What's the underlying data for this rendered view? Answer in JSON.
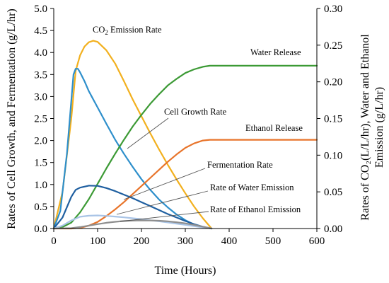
{
  "chart_data": {
    "type": "line",
    "xlabel": "Time (Hours)",
    "ylabel": "Rates of Cell Growth, and Fermentation (g/L/hr)",
    "y2label_line1": "Rates of CO₂(L/L/hr), Water and Ethanol",
    "y2label_line2": "Emission (g/L/hr)",
    "xlim": [
      0,
      600
    ],
    "ylim": [
      0,
      5.0
    ],
    "y2lim": [
      0,
      0.3
    ],
    "xticks": [
      "0",
      "100",
      "200",
      "300",
      "400",
      "500",
      "600"
    ],
    "yticks": [
      "0.0",
      "0.5",
      "1.0",
      "1.5",
      "2.0",
      "2.5",
      "3.0",
      "3.5",
      "4.0",
      "4.5",
      "5.0"
    ],
    "y2ticks": [
      "0.00",
      "0.05",
      "0.10",
      "0.15",
      "0.20",
      "0.25",
      "0.30"
    ],
    "grid": false,
    "series": [
      {
        "name": "CO₂ Emission Rate",
        "axis": "right",
        "color": "#F2B01E",
        "points": [
          [
            0,
            0
          ],
          [
            20,
            0.05
          ],
          [
            40,
            0.15
          ],
          [
            50,
            0.215
          ],
          [
            60,
            0.236
          ],
          [
            70,
            0.248
          ],
          [
            80,
            0.254
          ],
          [
            90,
            0.256
          ],
          [
            100,
            0.2545
          ],
          [
            120,
            0.243
          ],
          [
            140,
            0.225
          ],
          [
            160,
            0.201
          ],
          [
            180,
            0.176
          ],
          [
            200,
            0.153
          ],
          [
            220,
            0.13
          ],
          [
            240,
            0.108
          ],
          [
            260,
            0.087
          ],
          [
            280,
            0.067
          ],
          [
            300,
            0.048
          ],
          [
            320,
            0.03
          ],
          [
            340,
            0.014
          ],
          [
            360,
            0
          ]
        ]
      },
      {
        "name": "Cell Growth Rate",
        "axis": "left",
        "color": "#2E8FCB",
        "points": [
          [
            0,
            0
          ],
          [
            15,
            0.4
          ],
          [
            30,
            1.7
          ],
          [
            40,
            2.9
          ],
          [
            45,
            3.5
          ],
          [
            50,
            3.63
          ],
          [
            55,
            3.63
          ],
          [
            60,
            3.55
          ],
          [
            70,
            3.35
          ],
          [
            80,
            3.12
          ],
          [
            100,
            2.75
          ],
          [
            120,
            2.38
          ],
          [
            140,
            2.02
          ],
          [
            160,
            1.7
          ],
          [
            180,
            1.4
          ],
          [
            200,
            1.12
          ],
          [
            220,
            0.88
          ],
          [
            240,
            0.66
          ],
          [
            260,
            0.48
          ],
          [
            280,
            0.32
          ],
          [
            300,
            0.19
          ],
          [
            320,
            0.09
          ],
          [
            340,
            0.03
          ],
          [
            360,
            0
          ]
        ]
      },
      {
        "name": "Water Release",
        "axis": "right",
        "color": "#3C9A35",
        "points": [
          [
            0,
            0
          ],
          [
            20,
            0.002
          ],
          [
            40,
            0.008
          ],
          [
            60,
            0.022
          ],
          [
            80,
            0.04
          ],
          [
            100,
            0.061
          ],
          [
            120,
            0.082
          ],
          [
            140,
            0.102
          ],
          [
            160,
            0.121
          ],
          [
            180,
            0.139
          ],
          [
            200,
            0.155
          ],
          [
            220,
            0.17
          ],
          [
            240,
            0.183
          ],
          [
            260,
            0.195
          ],
          [
            280,
            0.204
          ],
          [
            300,
            0.212
          ],
          [
            320,
            0.217
          ],
          [
            340,
            0.2205
          ],
          [
            356,
            0.222
          ],
          [
            600,
            0.222
          ]
        ]
      },
      {
        "name": "Ethanol Release",
        "axis": "right",
        "color": "#E8742A",
        "points": [
          [
            0,
            0
          ],
          [
            40,
            0
          ],
          [
            60,
            0.001
          ],
          [
            80,
            0.004
          ],
          [
            100,
            0.009
          ],
          [
            120,
            0.017
          ],
          [
            140,
            0.026
          ],
          [
            160,
            0.036
          ],
          [
            180,
            0.047
          ],
          [
            200,
            0.058
          ],
          [
            220,
            0.069
          ],
          [
            240,
            0.08
          ],
          [
            260,
            0.091
          ],
          [
            280,
            0.101
          ],
          [
            300,
            0.11
          ],
          [
            320,
            0.116
          ],
          [
            340,
            0.12
          ],
          [
            356,
            0.121
          ],
          [
            600,
            0.121
          ]
        ]
      },
      {
        "name": "Fermentation Rate",
        "axis": "left",
        "color": "#1F5FA0",
        "points": [
          [
            0,
            0
          ],
          [
            20,
            0.25
          ],
          [
            40,
            0.72
          ],
          [
            50,
            0.88
          ],
          [
            60,
            0.93
          ],
          [
            80,
            0.975
          ],
          [
            100,
            0.97
          ],
          [
            120,
            0.92
          ],
          [
            140,
            0.85
          ],
          [
            160,
            0.77
          ],
          [
            180,
            0.69
          ],
          [
            200,
            0.6
          ],
          [
            220,
            0.51
          ],
          [
            240,
            0.42
          ],
          [
            260,
            0.33
          ],
          [
            280,
            0.25
          ],
          [
            300,
            0.17
          ],
          [
            320,
            0.1
          ],
          [
            340,
            0.04
          ],
          [
            360,
            0
          ]
        ]
      },
      {
        "name": "Rate of Water Emission",
        "axis": "right",
        "color": "#A9C4E6",
        "points": [
          [
            0,
            0
          ],
          [
            20,
            0.004
          ],
          [
            40,
            0.011
          ],
          [
            60,
            0.016
          ],
          [
            80,
            0.0175
          ],
          [
            100,
            0.0178
          ],
          [
            120,
            0.0172
          ],
          [
            140,
            0.0163
          ],
          [
            160,
            0.0152
          ],
          [
            180,
            0.014
          ],
          [
            200,
            0.0127
          ],
          [
            220,
            0.0113
          ],
          [
            240,
            0.0098
          ],
          [
            260,
            0.0083
          ],
          [
            280,
            0.0067
          ],
          [
            300,
            0.005
          ],
          [
            320,
            0.0033
          ],
          [
            340,
            0.0015
          ],
          [
            360,
            0
          ]
        ]
      },
      {
        "name": "Rate of Ethanol Emission",
        "axis": "right",
        "color": "#8E8E8E",
        "points": [
          [
            0,
            0
          ],
          [
            40,
            0.0005
          ],
          [
            60,
            0.002
          ],
          [
            80,
            0.004
          ],
          [
            100,
            0.006
          ],
          [
            120,
            0.0078
          ],
          [
            140,
            0.0092
          ],
          [
            160,
            0.0102
          ],
          [
            180,
            0.0108
          ],
          [
            200,
            0.0111
          ],
          [
            220,
            0.011
          ],
          [
            240,
            0.0106
          ],
          [
            260,
            0.0098
          ],
          [
            280,
            0.0086
          ],
          [
            300,
            0.007
          ],
          [
            320,
            0.005
          ],
          [
            340,
            0.0025
          ],
          [
            360,
            0
          ]
        ]
      }
    ],
    "annotations": [
      {
        "id": "co2",
        "text": "CO",
        "sub": "2",
        "rest": " Emission Rate"
      },
      {
        "id": "water",
        "text": "Water Release"
      },
      {
        "id": "cell",
        "text": "Cell Growth Rate"
      },
      {
        "id": "ethanol",
        "text": "Ethanol Release"
      },
      {
        "id": "ferm",
        "text": "Fermentation Rate"
      },
      {
        "id": "wateremis",
        "text": "Rate of Water Emission"
      },
      {
        "id": "ethemis",
        "text": "Rate of Ethanol Emission"
      }
    ]
  }
}
